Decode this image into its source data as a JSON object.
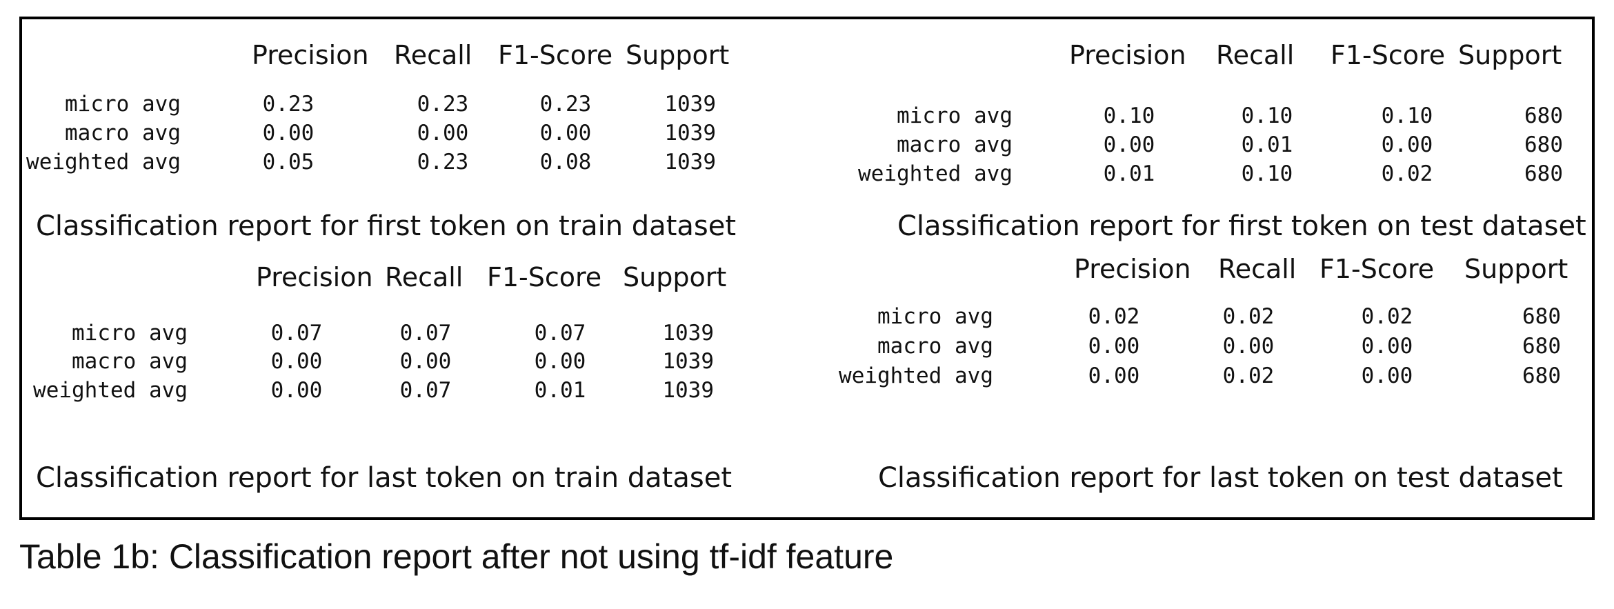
{
  "reports": [
    {
      "headers": [
        "Precision",
        "Recall",
        "F1-Score",
        "Support"
      ],
      "rows": [
        {
          "label": "micro avg",
          "values": [
            "0.23",
            "0.23",
            "0.23",
            "1039"
          ]
        },
        {
          "label": "macro avg",
          "values": [
            "0.00",
            "0.00",
            "0.00",
            "1039"
          ]
        },
        {
          "label": "weighted avg",
          "values": [
            "0.05",
            "0.23",
            "0.08",
            "1039"
          ]
        }
      ],
      "caption": "Classification report for first token on train dataset"
    },
    {
      "headers": [
        "Precision",
        "Recall",
        "F1-Score",
        "Support"
      ],
      "rows": [
        {
          "label": "micro avg",
          "values": [
            "0.10",
            "0.10",
            "0.10",
            "680"
          ]
        },
        {
          "label": "macro avg",
          "values": [
            "0.00",
            "0.01",
            "0.00",
            "680"
          ]
        },
        {
          "label": "weighted avg",
          "values": [
            "0.01",
            "0.10",
            "0.02",
            "680"
          ]
        }
      ],
      "caption": "Classification report for first token on test dataset"
    },
    {
      "headers": [
        "Precision",
        "Recall",
        "F1-Score",
        "Support"
      ],
      "rows": [
        {
          "label": "micro avg",
          "values": [
            "0.07",
            "0.07",
            "0.07",
            "1039"
          ]
        },
        {
          "label": "macro avg",
          "values": [
            "0.00",
            "0.00",
            "0.00",
            "1039"
          ]
        },
        {
          "label": "weighted avg",
          "values": [
            "0.00",
            "0.07",
            "0.01",
            "1039"
          ]
        }
      ],
      "caption": "Classification report for last token on train dataset"
    },
    {
      "headers": [
        "Precision",
        "Recall",
        "F1-Score",
        "Support"
      ],
      "rows": [
        {
          "label": "micro avg",
          "values": [
            "0.02",
            "0.02",
            "0.02",
            "680"
          ]
        },
        {
          "label": "macro avg",
          "values": [
            "0.00",
            "0.00",
            "0.00",
            "680"
          ]
        },
        {
          "label": "weighted avg",
          "values": [
            "0.00",
            "0.02",
            "0.00",
            "680"
          ]
        }
      ],
      "caption": "Classification report for last token on test dataset"
    }
  ],
  "table_caption": "Table 1b: Classification report after not using tf-idf feature"
}
